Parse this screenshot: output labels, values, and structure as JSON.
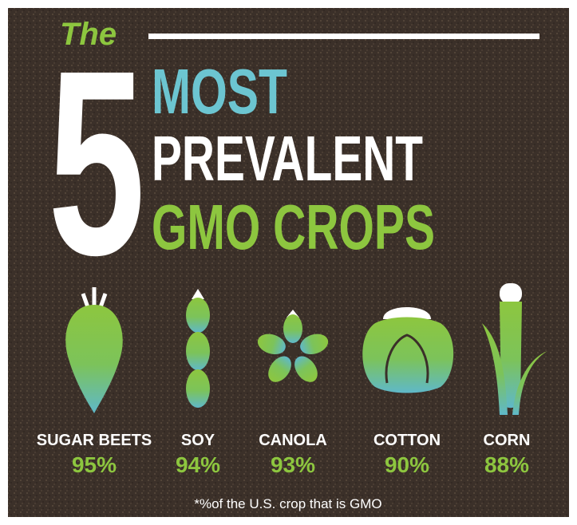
{
  "header": {
    "the": "The",
    "number": "5",
    "line1": "MOST",
    "line2": "PREVALENT",
    "line3": "GMO CROPS"
  },
  "crops": [
    {
      "name": "SUGAR BEETS",
      "percent": "95%"
    },
    {
      "name": "SOY",
      "percent": "94%"
    },
    {
      "name": "CANOLA",
      "percent": "93%"
    },
    {
      "name": "COTTON",
      "percent": "90%"
    },
    {
      "name": "CORN",
      "percent": "88%"
    }
  ],
  "footnote": "*%of the U.S. crop that is GMO"
}
